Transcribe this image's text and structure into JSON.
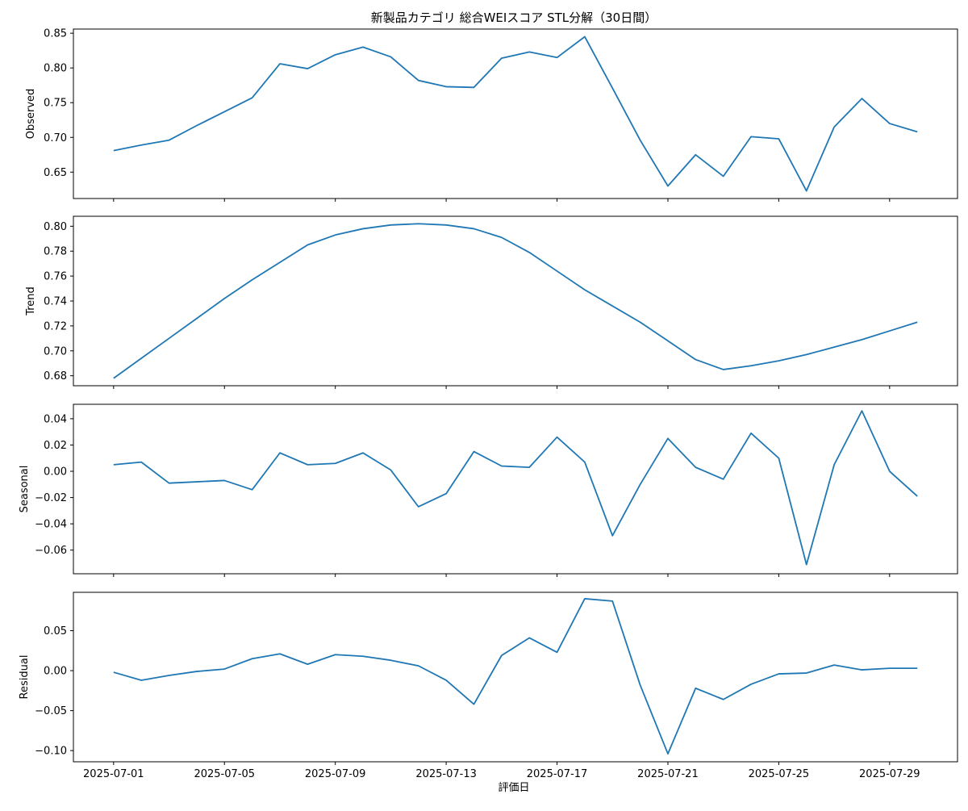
{
  "title": "新製品カテゴリ 総合WEIスコア STL分解（30日間）",
  "chart_data": {
    "type": "line",
    "title": "新製品カテゴリ 総合WEIスコア STL分解（30日間）",
    "xlabel": "評価日",
    "x": [
      "2025-07-01",
      "2025-07-02",
      "2025-07-03",
      "2025-07-04",
      "2025-07-05",
      "2025-07-06",
      "2025-07-07",
      "2025-07-08",
      "2025-07-09",
      "2025-07-10",
      "2025-07-11",
      "2025-07-12",
      "2025-07-13",
      "2025-07-14",
      "2025-07-15",
      "2025-07-16",
      "2025-07-17",
      "2025-07-18",
      "2025-07-19",
      "2025-07-20",
      "2025-07-21",
      "2025-07-22",
      "2025-07-23",
      "2025-07-24",
      "2025-07-25",
      "2025-07-26",
      "2025-07-27",
      "2025-07-28",
      "2025-07-29",
      "2025-07-30"
    ],
    "x_tick_labels": [
      "2025-07-01",
      "2025-07-05",
      "2025-07-09",
      "2025-07-13",
      "2025-07-17",
      "2025-07-21",
      "2025-07-25",
      "2025-07-29"
    ],
    "panels": [
      {
        "ylabel": "Observed",
        "ylim": [
          0.612,
          0.856
        ],
        "yticks": [
          0.65,
          0.7,
          0.75,
          0.8,
          0.85
        ],
        "ytick_labels": [
          "0.65",
          "0.70",
          "0.75",
          "0.80",
          "0.85"
        ],
        "series": [
          {
            "values": [
              0.681,
              0.689,
              0.696,
              0.717,
              0.737,
              0.757,
              0.806,
              0.799,
              0.819,
              0.83,
              0.816,
              0.782,
              0.773,
              0.772,
              0.814,
              0.823,
              0.815,
              0.845,
              0.771,
              0.696,
              0.63,
              0.675,
              0.644,
              0.701,
              0.698,
              0.623,
              0.715,
              0.756,
              0.72,
              0.708
            ],
            "color": "#1f77b4"
          }
        ]
      },
      {
        "ylabel": "Trend",
        "ylim": [
          0.672,
          0.808
        ],
        "yticks": [
          0.68,
          0.7,
          0.72,
          0.74,
          0.76,
          0.78,
          0.8
        ],
        "ytick_labels": [
          "0.68",
          "0.70",
          "0.72",
          "0.74",
          "0.76",
          "0.78",
          "0.80"
        ],
        "series": [
          {
            "values": [
              0.678,
              0.694,
              0.71,
              0.726,
              0.742,
              0.757,
              0.771,
              0.785,
              0.793,
              0.798,
              0.801,
              0.802,
              0.801,
              0.798,
              0.791,
              0.779,
              0.764,
              0.749,
              0.736,
              0.723,
              0.708,
              0.693,
              0.685,
              0.688,
              0.692,
              0.697,
              0.703,
              0.709,
              0.716,
              0.723
            ],
            "color": "#1f77b4"
          }
        ]
      },
      {
        "ylabel": "Seasonal",
        "ylim": [
          -0.078,
          0.051
        ],
        "yticks": [
          -0.06,
          -0.04,
          -0.02,
          0.0,
          0.02,
          0.04
        ],
        "ytick_labels": [
          "−0.06",
          "−0.04",
          "−0.02",
          "0.00",
          "0.02",
          "0.04"
        ],
        "series": [
          {
            "values": [
              0.005,
              0.007,
              -0.009,
              -0.008,
              -0.007,
              -0.014,
              0.014,
              0.005,
              0.006,
              0.014,
              0.001,
              -0.027,
              -0.017,
              0.015,
              0.004,
              0.003,
              0.026,
              0.007,
              -0.049,
              -0.01,
              0.025,
              0.003,
              -0.006,
              0.029,
              0.01,
              -0.071,
              0.005,
              0.046,
              0.0,
              -0.019
            ],
            "color": "#1f77b4"
          }
        ]
      },
      {
        "ylabel": "Residual",
        "ylim": [
          -0.114,
          0.098
        ],
        "yticks": [
          -0.1,
          -0.05,
          0.0,
          0.05
        ],
        "ytick_labels": [
          "−0.10",
          "−0.05",
          "0.00",
          "0.05"
        ],
        "series": [
          {
            "values": [
              -0.002,
              -0.012,
              -0.006,
              -0.001,
              0.002,
              0.015,
              0.021,
              0.008,
              0.02,
              0.018,
              0.013,
              0.006,
              -0.012,
              -0.042,
              0.019,
              0.041,
              0.023,
              0.09,
              0.087,
              -0.018,
              -0.104,
              -0.022,
              -0.036,
              -0.017,
              -0.004,
              -0.003,
              0.007,
              0.001,
              0.003,
              0.003
            ],
            "color": "#1f77b4"
          }
        ]
      }
    ]
  }
}
